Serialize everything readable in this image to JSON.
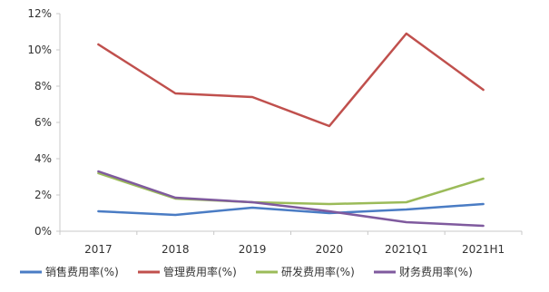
{
  "chart_data": {
    "type": "line",
    "title": "",
    "xlabel": "",
    "ylabel": "",
    "categories": [
      "2017",
      "2018",
      "2019",
      "2020",
      "2021Q1",
      "2021H1"
    ],
    "ylim": [
      0,
      12
    ],
    "yticks": [
      0,
      2,
      4,
      6,
      8,
      10,
      12
    ],
    "ytick_labels": [
      "0%",
      "2%",
      "4%",
      "6%",
      "8%",
      "10%",
      "12%"
    ],
    "grid": false,
    "legend_position": "bottom",
    "series": [
      {
        "name": "销售费用率(%)",
        "color": "#4a7cc4",
        "values": [
          1.1,
          0.9,
          1.3,
          1.0,
          1.2,
          1.5
        ]
      },
      {
        "name": "管理费用率(%)",
        "color": "#c0504d",
        "values": [
          10.3,
          7.6,
          7.4,
          5.8,
          10.9,
          7.8
        ]
      },
      {
        "name": "研发费用率(%)",
        "color": "#9bbb59",
        "values": [
          3.2,
          1.8,
          1.6,
          1.5,
          1.6,
          2.9
        ]
      },
      {
        "name": "财务费用率(%)",
        "color": "#7f5a9e",
        "values": [
          3.3,
          1.85,
          1.6,
          1.1,
          0.5,
          0.3
        ]
      }
    ]
  }
}
